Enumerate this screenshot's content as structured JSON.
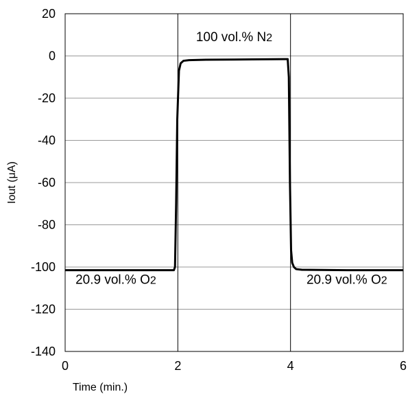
{
  "chart_data": {
    "type": "line",
    "title": "",
    "xlabel": "Time (min.)",
    "ylabel": "Iout (μA)",
    "xlim": [
      0,
      6
    ],
    "ylim": [
      -140,
      20
    ],
    "xticks": [
      0,
      2,
      4,
      6
    ],
    "yticks": [
      20,
      0,
      -20,
      -40,
      -60,
      -80,
      -100,
      -120,
      -140
    ],
    "grid": {
      "horizontal": true,
      "vertical": true
    },
    "line_color": "#000000",
    "series": [
      {
        "x": [
          0,
          1.0,
          1.93,
          1.95,
          1.97,
          1.99,
          2.02,
          2.05,
          2.1,
          2.2,
          2.5,
          3.0,
          3.5,
          3.9,
          3.95,
          3.97,
          3.99,
          4.01,
          4.03,
          4.06,
          4.1,
          4.2,
          5.0,
          6.0
        ],
        "y": [
          -101.5,
          -101.5,
          -101.5,
          -100,
          -70,
          -30,
          -7,
          -3.5,
          -2.3,
          -2,
          -1.8,
          -1.7,
          -1.6,
          -1.5,
          -1.5,
          -10,
          -60,
          -92,
          -98,
          -100,
          -101,
          -101.3,
          -101.5,
          -101.5
        ]
      }
    ],
    "annotations": [
      {
        "text": "100 vol.% N",
        "sub": "2",
        "x": 3.0,
        "y": 7
      },
      {
        "text": "20.9 vol.% O",
        "sub": "2",
        "x": 0.9,
        "y": -108
      },
      {
        "text": "20.9 vol.% O",
        "sub": "2",
        "x": 5.0,
        "y": -108
      }
    ]
  }
}
